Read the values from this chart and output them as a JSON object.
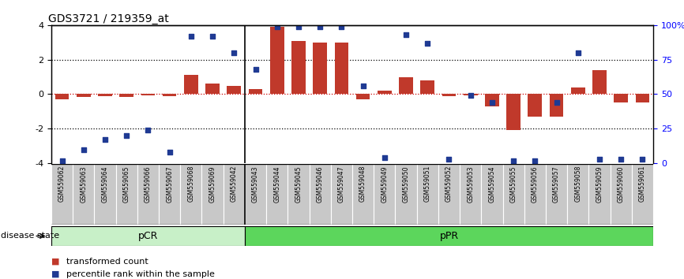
{
  "title": "GDS3721 / 219359_at",
  "samples": [
    "GSM559062",
    "GSM559063",
    "GSM559064",
    "GSM559065",
    "GSM559066",
    "GSM559067",
    "GSM559068",
    "GSM559069",
    "GSM559042",
    "GSM559043",
    "GSM559044",
    "GSM559045",
    "GSM559046",
    "GSM559047",
    "GSM559048",
    "GSM559049",
    "GSM559050",
    "GSM559051",
    "GSM559052",
    "GSM559053",
    "GSM559054",
    "GSM559055",
    "GSM559056",
    "GSM559057",
    "GSM559058",
    "GSM559059",
    "GSM559060",
    "GSM559061"
  ],
  "bar_values": [
    -0.3,
    -0.15,
    -0.1,
    -0.15,
    -0.05,
    -0.1,
    1.1,
    0.6,
    0.5,
    0.3,
    3.9,
    3.1,
    3.0,
    3.0,
    -0.3,
    0.2,
    1.0,
    0.8,
    -0.1,
    -0.05,
    -0.7,
    -2.1,
    -1.3,
    -1.3,
    0.4,
    1.4,
    -0.5,
    -0.5
  ],
  "dot_values_pct": [
    2,
    10,
    17,
    20,
    24,
    8,
    92,
    92,
    80,
    68,
    99,
    99,
    99,
    99,
    56,
    4,
    93,
    87,
    3,
    49,
    44,
    2,
    2,
    44,
    80,
    3,
    3,
    3
  ],
  "pCR_count": 9,
  "ylim_left": [
    -4,
    4
  ],
  "yticks_left": [
    -4,
    -2,
    0,
    2,
    4
  ],
  "yticks_right_pct": [
    0,
    25,
    50,
    75,
    100
  ],
  "ytick_right_labels": [
    "0",
    "25",
    "50",
    "75",
    "100%"
  ],
  "bar_color": "#C0392B",
  "dot_color": "#1F3A93",
  "pCR_facecolor": "#C8F0C8",
  "pPR_facecolor": "#5CD65C",
  "label_bg_color": "#C8C8C8",
  "legend_bar_label": "transformed count",
  "legend_dot_label": "percentile rank within the sample",
  "disease_state_label": "disease state",
  "zero_line_color": "#CC0000",
  "dotted_line_color": "black"
}
